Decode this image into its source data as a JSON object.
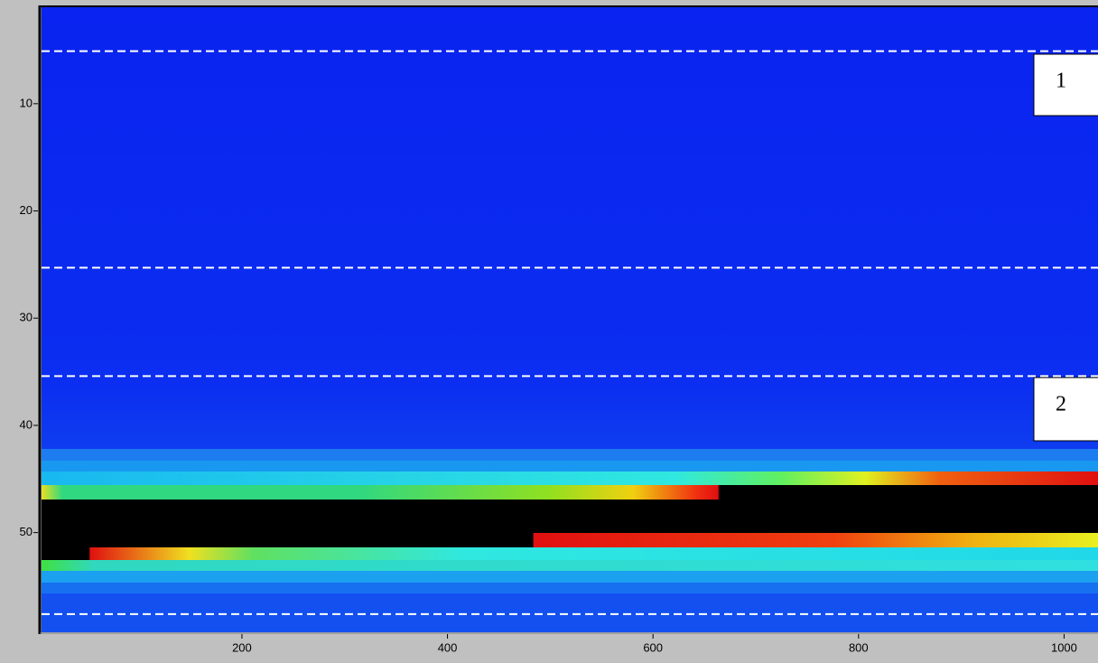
{
  "chart_data": {
    "type": "heatmap",
    "xlim": [
      5,
      1033
    ],
    "xticks": [
      200,
      400,
      600,
      800,
      1000
    ],
    "ylim": [
      1,
      59.3
    ],
    "yticks": [
      10,
      20,
      30,
      40,
      50
    ],
    "reference_lines": [
      5.1,
      25.3,
      35.4,
      57.6
    ],
    "annotations": [
      {
        "text": "1"
      },
      {
        "text": "2"
      }
    ]
  }
}
